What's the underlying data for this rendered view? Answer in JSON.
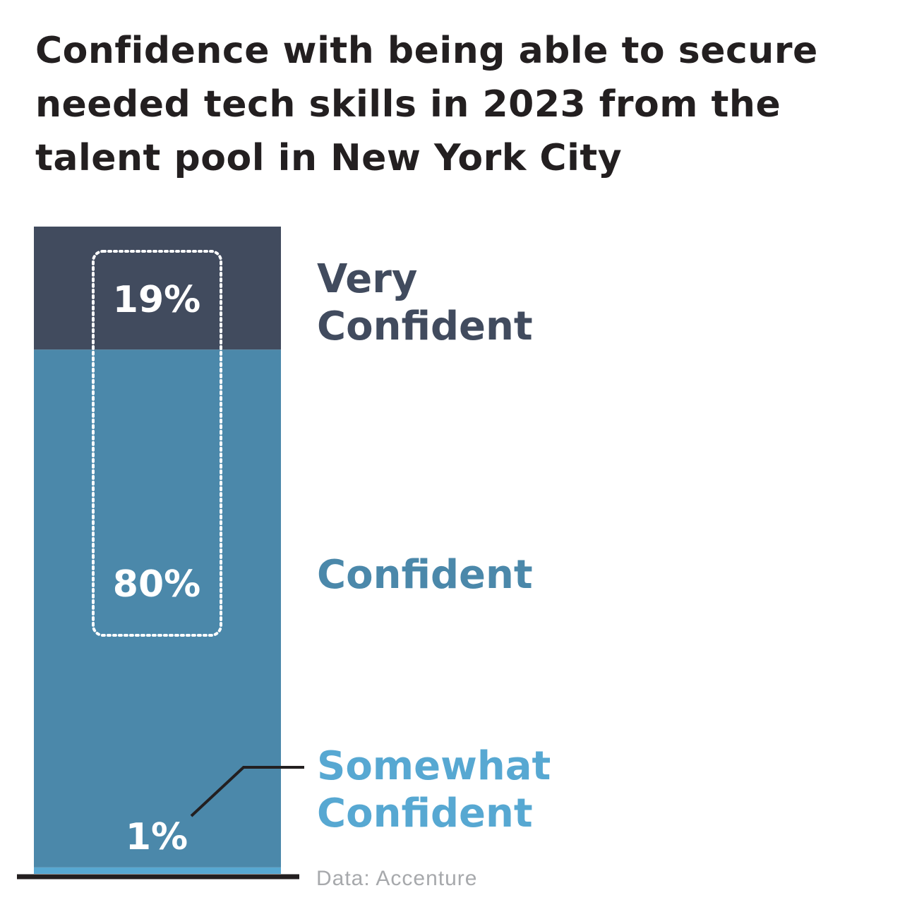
{
  "title": "Confidence with being able to secure needed tech skills in 2023 from the talent pool in New York City",
  "source": "Data: Accenture",
  "colors": {
    "very_confident": "#414b5e",
    "confident": "#4b88aa",
    "somewhat_confident": "#57a8d2",
    "baseline": "#231f20"
  },
  "chart_data": {
    "type": "bar",
    "stacked": true,
    "title": "Confidence with being able to secure needed tech skills in 2023 from the talent pool in New York City",
    "categories": [
      "Somewhat Confident",
      "Confident",
      "Very Confident"
    ],
    "series": [
      {
        "name": "Somewhat Confident",
        "value": 1,
        "label": "1%"
      },
      {
        "name": "Confident",
        "value": 80,
        "label": "80%"
      },
      {
        "name": "Very Confident",
        "value": 19,
        "label": "19%"
      }
    ],
    "category_labels": {
      "very_confident": [
        "Very",
        "Confident"
      ],
      "confident": [
        "Confident"
      ],
      "somewhat_confident": [
        "Somewhat",
        "Confident"
      ]
    },
    "ylim": [
      0,
      100
    ],
    "highlight": "Confident + Very Confident (80% + 19%)"
  }
}
